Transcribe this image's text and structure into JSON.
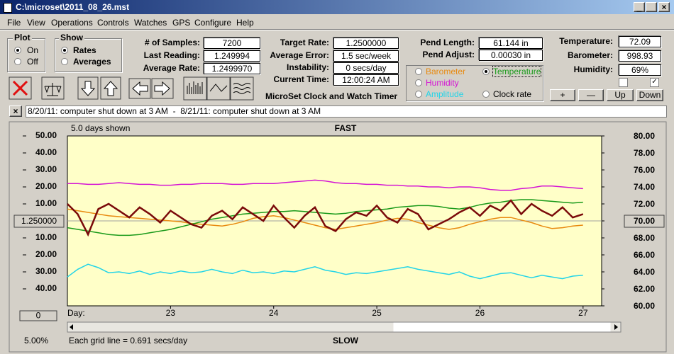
{
  "window": {
    "title": "C:\\microset\\2011_08_26.mst"
  },
  "menu": [
    "File",
    "View",
    "Operations",
    "Controls",
    "Watches",
    "GPS",
    "Configure",
    "Help"
  ],
  "plot_group": {
    "title": "Plot",
    "options": [
      "On",
      "Off"
    ]
  },
  "show_group": {
    "title": "Show",
    "options": [
      "Rates",
      "Averages"
    ]
  },
  "readings": [
    {
      "label": "# of Samples:",
      "value": "7200"
    },
    {
      "label": "Last Reading:",
      "value": "1.249994"
    },
    {
      "label": "Average Rate:",
      "value": "1.2499970"
    }
  ],
  "rates": [
    {
      "label": "Target Rate:",
      "value": "1.2500000"
    },
    {
      "label": "Average Error:",
      "value": "1.5 sec/week"
    },
    {
      "label": "Instability:",
      "value": "0 secs/day"
    },
    {
      "label": "Current Time:",
      "value": "12:00:24 AM"
    }
  ],
  "pendulum": [
    {
      "label": "Pend Length:",
      "value": "61.144 in"
    },
    {
      "label": "Pend Adjust:",
      "value": "0.00030 in"
    }
  ],
  "environment": [
    {
      "label": "Temperature:",
      "value": "72.09"
    },
    {
      "label": "Barometer:",
      "value": "998.93"
    },
    {
      "label": "Humidity:",
      "value": "69%"
    }
  ],
  "adjust_buttons": [
    "+",
    "—",
    "Up",
    "Down"
  ],
  "app_name": "MicroSet Clock and Watch Timer",
  "notes": "8/20/11: computer shut down at 3 AM  -  8/21/11: computer shut down at 3 AM",
  "status": {
    "scale": "5.00%",
    "grid_note": "Each grid line = 0.691 secs/day",
    "offset": "0"
  },
  "chart_data": {
    "type": "line",
    "top_label": "5.0 days shown",
    "title": "FAST",
    "bottom_title": "SLOW",
    "x_label": "Day:",
    "center_rate": "1.250000",
    "x": [
      22,
      22.1,
      22.2,
      22.3,
      22.4,
      22.5,
      22.6,
      22.7,
      22.8,
      22.9,
      23,
      23.1,
      23.2,
      23.3,
      23.4,
      23.5,
      23.6,
      23.7,
      23.8,
      23.9,
      24,
      24.1,
      24.2,
      24.3,
      24.4,
      24.5,
      24.6,
      24.7,
      24.8,
      24.9,
      25,
      25.1,
      25.2,
      25.3,
      25.4,
      25.5,
      25.6,
      25.7,
      25.8,
      25.9,
      26,
      26.1,
      26.2,
      26.3,
      26.4,
      26.5,
      26.6,
      26.7,
      26.8,
      26.9,
      27
    ],
    "xlim": [
      22,
      27.18
    ],
    "xticks": [
      23,
      24,
      25,
      26,
      27
    ],
    "ylim": [
      -50,
      50
    ],
    "yticks": [
      {
        "value": 50,
        "label": "50.00"
      },
      {
        "value": 40,
        "label": "40.00"
      },
      {
        "value": 30,
        "label": "30.00"
      },
      {
        "value": 20,
        "label": "20.00"
      },
      {
        "value": 10,
        "label": "10.00"
      },
      {
        "value": -10,
        "label": "10.00"
      },
      {
        "value": -20,
        "label": "20.00"
      },
      {
        "value": -30,
        "label": "30.00"
      },
      {
        "value": -40,
        "label": "40.00"
      }
    ],
    "y2lim": [
      60,
      80
    ],
    "y2ticks": [
      {
        "value": 80,
        "label": "80.00"
      },
      {
        "value": 78,
        "label": "78.00"
      },
      {
        "value": 76,
        "label": "76.00"
      },
      {
        "value": 74,
        "label": "74.00"
      },
      {
        "value": 72,
        "label": "72.00"
      },
      {
        "value": 70,
        "label": "70.00"
      },
      {
        "value": 68,
        "label": "68.00"
      },
      {
        "value": 66,
        "label": "66.00"
      },
      {
        "value": 64,
        "label": "64.00"
      },
      {
        "value": 62,
        "label": "62.00"
      },
      {
        "value": 60,
        "label": "60.00"
      }
    ],
    "series": [
      {
        "name": "Barometer",
        "color": "#e88a10",
        "axis": "y2",
        "values": [
          71.4,
          71.2,
          71.0,
          70.8,
          70.6,
          70.5,
          70.4,
          70.3,
          70.2,
          70.1,
          70.0,
          69.9,
          69.7,
          69.6,
          69.5,
          69.4,
          69.6,
          69.9,
          70.3,
          70.5,
          70.6,
          70.4,
          70.1,
          69.8,
          69.5,
          69.2,
          69.0,
          69.2,
          69.4,
          69.6,
          69.8,
          70.1,
          70.3,
          70.2,
          69.8,
          69.5,
          69.2,
          69.0,
          69.2,
          69.6,
          69.9,
          70.2,
          70.4,
          70.4,
          70.1,
          69.8,
          69.4,
          69.1,
          69.2,
          69.4,
          69.5
        ]
      },
      {
        "name": "Temperature",
        "color": "#1a9a1a",
        "axis": "y2",
        "values": [
          69.2,
          69.0,
          68.8,
          68.6,
          68.4,
          68.3,
          68.3,
          68.4,
          68.6,
          68.8,
          69.0,
          69.3,
          69.6,
          69.9,
          70.2,
          70.4,
          70.6,
          70.8,
          70.9,
          71.0,
          71.1,
          71.1,
          71.2,
          71.1,
          71.0,
          70.9,
          70.8,
          70.9,
          71.1,
          71.2,
          71.3,
          71.4,
          71.6,
          71.7,
          71.8,
          71.8,
          71.7,
          71.5,
          71.4,
          71.6,
          71.9,
          72.1,
          72.2,
          72.4,
          72.5,
          72.5,
          72.4,
          72.3,
          72.2,
          72.1,
          72.2
        ]
      },
      {
        "name": "Humidity",
        "color": "#d414d4",
        "axis": "y2",
        "values": [
          74.4,
          74.4,
          74.3,
          74.3,
          74.4,
          74.5,
          74.4,
          74.3,
          74.3,
          74.2,
          74.2,
          74.3,
          74.3,
          74.4,
          74.4,
          74.4,
          74.3,
          74.3,
          74.4,
          74.4,
          74.4,
          74.5,
          74.6,
          74.7,
          74.8,
          74.7,
          74.5,
          74.4,
          74.4,
          74.3,
          74.3,
          74.2,
          74.2,
          74.1,
          74.1,
          74.0,
          74.0,
          73.9,
          74.0,
          74.0,
          73.9,
          73.7,
          73.6,
          73.6,
          73.8,
          73.9,
          74.1,
          74.1,
          74.0,
          73.9,
          73.8
        ]
      },
      {
        "name": "Amplitude",
        "color": "#22d4e8",
        "axis": "y2",
        "values": [
          63.4,
          64.3,
          64.9,
          64.5,
          63.9,
          64.0,
          63.8,
          64.1,
          63.7,
          64.0,
          63.8,
          64.1,
          63.9,
          64.0,
          64.3,
          64.0,
          63.8,
          64.2,
          63.9,
          64.0,
          63.8,
          64.1,
          64.0,
          64.3,
          64.6,
          64.2,
          64.0,
          63.7,
          63.9,
          63.8,
          64.0,
          64.2,
          64.4,
          64.6,
          64.3,
          64.1,
          63.9,
          63.7,
          64.0,
          63.5,
          63.2,
          63.5,
          63.8,
          63.9,
          63.6,
          63.3,
          63.6,
          63.4,
          63.2,
          63.5,
          63.6
        ]
      },
      {
        "name": "Clock rate",
        "color": "#7a0a0a",
        "axis": "y",
        "values": [
          10,
          4,
          -8,
          7,
          10,
          6,
          2,
          8,
          4,
          -1,
          6,
          2,
          -2,
          -4,
          3,
          6,
          1,
          8,
          4,
          0,
          9,
          2,
          -4,
          3,
          8,
          -3,
          -6,
          1,
          5,
          3,
          9,
          2,
          -1,
          7,
          4,
          -5,
          -2,
          1,
          5,
          8,
          3,
          9,
          6,
          12,
          4,
          10,
          6,
          3,
          8,
          2,
          4
        ]
      }
    ]
  }
}
